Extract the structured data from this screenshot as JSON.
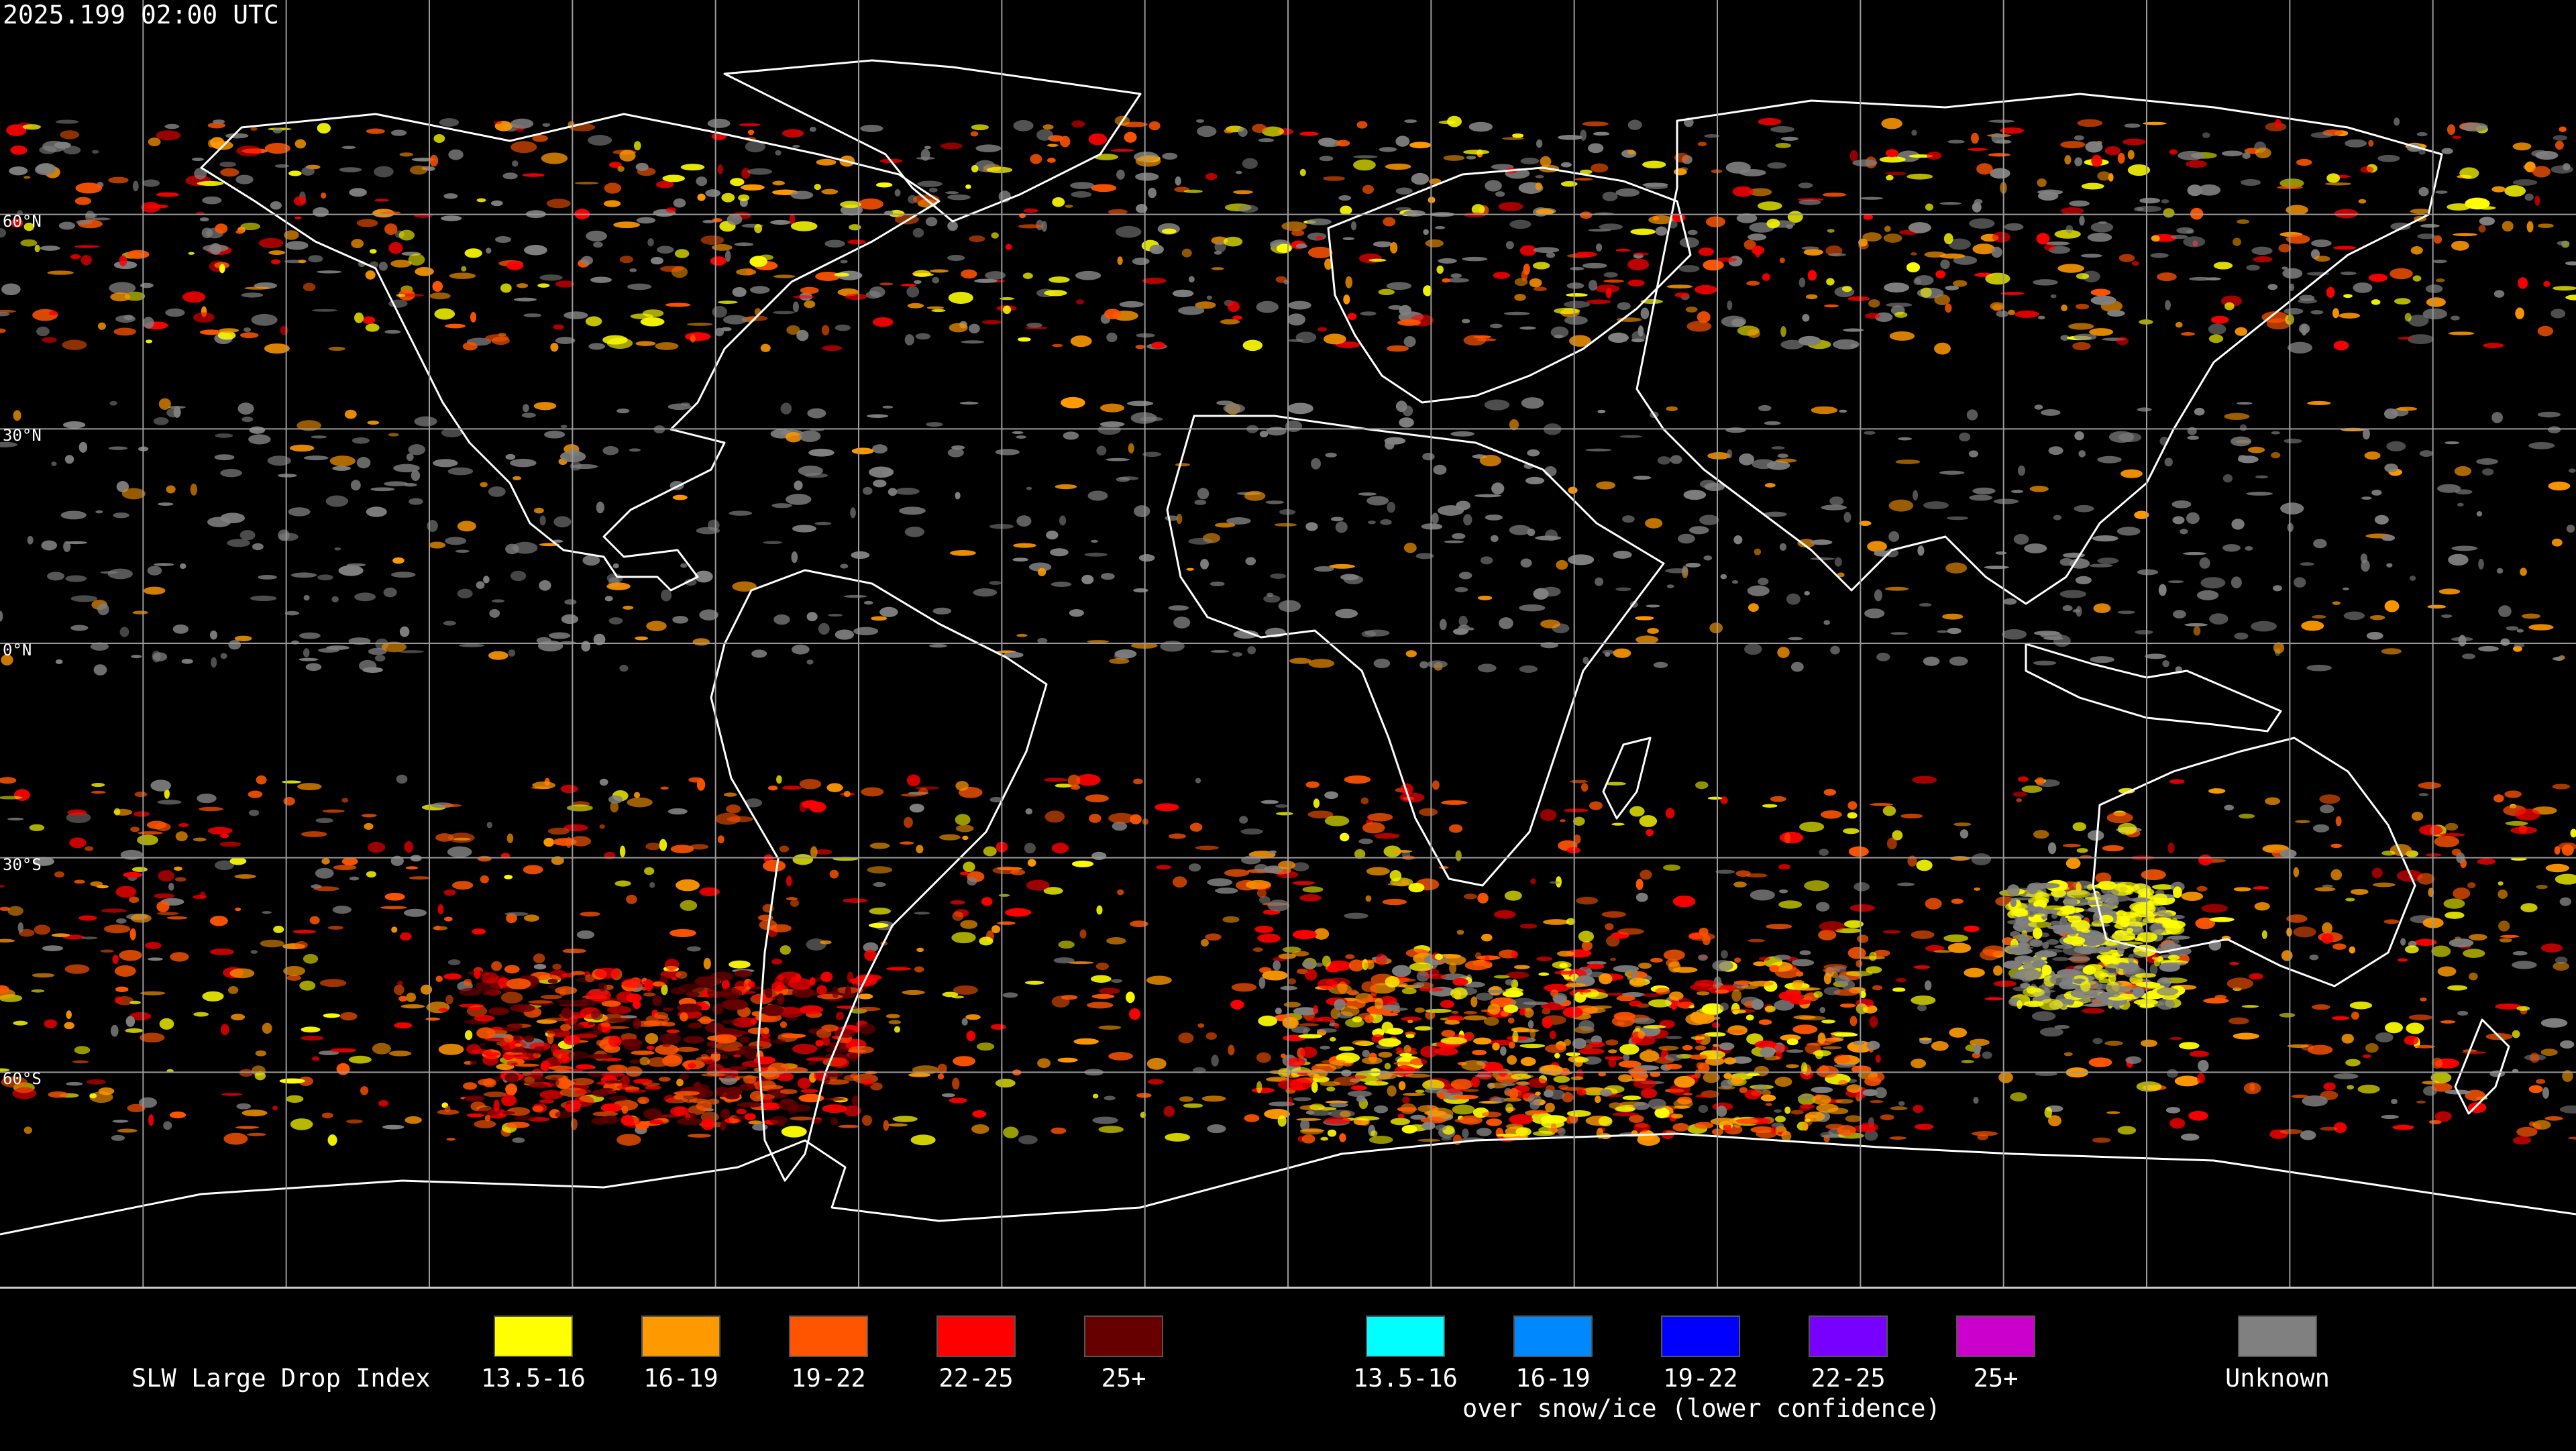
{
  "timestamp": "2025.199 02:00 UTC",
  "map": {
    "projection": "equirectangular",
    "lon_range": [
      -180,
      180
    ],
    "lat_range": [
      -90,
      90
    ],
    "graticule_step_deg": 20,
    "graticule_lat_step_deg": 30,
    "lat_labels": [
      {
        "lat": 60,
        "text": "60°N"
      },
      {
        "lat": 30,
        "text": "30°N"
      },
      {
        "lat": 0,
        "text": "0°N"
      },
      {
        "lat": -30,
        "text": "30°S"
      },
      {
        "lat": -60,
        "text": "60°S"
      }
    ],
    "colors": {
      "background": "#000000",
      "coastline": "#ffffff",
      "grid": "#9a9a9a"
    }
  },
  "legend": {
    "title": "SLW Large Drop Index",
    "subtitle": "over snow/ice (lower confidence)",
    "groups": [
      {
        "name": "standard",
        "items": [
          {
            "label": "13.5-16",
            "color": "#ffff00"
          },
          {
            "label": "16-19",
            "color": "#ff9900"
          },
          {
            "label": "19-22",
            "color": "#ff5500"
          },
          {
            "label": "22-25",
            "color": "#ff0000"
          },
          {
            "label": "25+",
            "color": "#660000"
          }
        ]
      },
      {
        "name": "snow_ice",
        "items": [
          {
            "label": "13.5-16",
            "color": "#00ffff"
          },
          {
            "label": "16-19",
            "color": "#0088ff"
          },
          {
            "label": "19-22",
            "color": "#0000ff"
          },
          {
            "label": "22-25",
            "color": "#7700ff"
          },
          {
            "label": "25+",
            "color": "#cc00cc"
          }
        ]
      },
      {
        "name": "unknown",
        "items": [
          {
            "label": "Unknown",
            "color": "#808080"
          }
        ]
      }
    ]
  }
}
